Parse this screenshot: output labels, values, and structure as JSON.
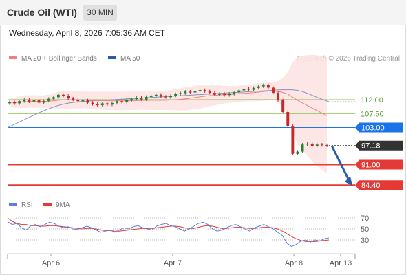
{
  "header": {
    "title": "Crude Oil (WTI)",
    "timeframe": "30 MIN"
  },
  "datetime": "Wednesday, April 8, 2026 7:05:36 AM CET",
  "legend": {
    "ma20_label": "MA 20 + Bollinger Bands",
    "ma50_label": "MA 50",
    "rsi_label": "RSI",
    "rsi_ma_label": "9MA",
    "credit": "Research © 2026 Trading Central"
  },
  "colors": {
    "candle_up": "#2e7d32",
    "candle_down": "#c62828",
    "ma20": "#f08080",
    "bollinger_fill": "#fde3e3",
    "ma50": "#8a8fbf",
    "pivot": "#1a73e8",
    "support": "#e53935",
    "resistance": "#8bc34a",
    "arrow": "#2a5ca8",
    "rsi": "#5b7fd6",
    "rsi_ma": "#e53935"
  },
  "chart_data": {
    "type": "candlestick",
    "x_ticks": [
      "Apr 6",
      "Apr 7",
      "Apr 8",
      "Apr 13"
    ],
    "y_range": [
      82.0,
      122.0
    ],
    "levels": [
      {
        "value": 112.0,
        "label": "112.00",
        "kind": "resistance"
      },
      {
        "value": 107.5,
        "label": "107.50",
        "kind": "resistance"
      },
      {
        "value": 103.0,
        "label": "103.00",
        "kind": "pivot"
      },
      {
        "value": 97.18,
        "label": "97.18",
        "kind": "last"
      },
      {
        "value": 91.0,
        "label": "91.00",
        "kind": "support"
      },
      {
        "value": 84.4,
        "label": "84.40",
        "kind": "support"
      }
    ],
    "close_series": [
      111.2,
      110.8,
      111.5,
      112.0,
      111.4,
      111.8,
      111.0,
      111.6,
      112.3,
      112.8,
      113.6,
      113.3,
      112.4,
      112.0,
      111.5,
      111.8,
      111.0,
      110.6,
      110.2,
      110.8,
      110.4,
      110.9,
      111.5,
      111.2,
      111.9,
      112.2,
      112.6,
      112.1,
      112.9,
      113.2,
      113.6,
      113.0,
      112.8,
      113.3,
      113.8,
      114.1,
      114.6,
      114.3,
      114.8,
      115.1,
      114.7,
      114.2,
      113.6,
      113.9,
      113.5,
      113.9,
      114.4,
      115.0,
      115.5,
      115.2,
      115.8,
      116.3,
      116.7,
      115.9,
      114.2,
      111.8,
      108.0,
      103.5,
      94.5,
      95.2,
      97.5,
      97.8,
      97.1,
      97.5,
      97.3,
      97.18
    ],
    "ma50_series": [
      103.0,
      103.8,
      104.6,
      105.4,
      106.2,
      107.0,
      107.8,
      108.5,
      109.2,
      109.8,
      110.3,
      110.7,
      111.0,
      111.2,
      111.4,
      111.5,
      111.6,
      111.7,
      111.8,
      111.9,
      112.0,
      112.1,
      112.2,
      112.3,
      112.4,
      112.5,
      112.6,
      112.7,
      112.8,
      112.9,
      113.0,
      113.1,
      113.2,
      113.3,
      113.4,
      113.5,
      113.6,
      113.7,
      113.8,
      113.9,
      114.0,
      114.1,
      114.2,
      114.3,
      114.4,
      114.5,
      114.6,
      114.7,
      114.8,
      114.9,
      115.0,
      115.1,
      115.2,
      115.2,
      115.2,
      115.0,
      114.6,
      114.0,
      113.3,
      112.6,
      111.9,
      111.3
    ],
    "rsi_series": [
      63,
      58,
      60,
      52,
      48,
      56,
      58,
      54,
      58,
      62,
      60,
      55,
      52,
      54,
      50,
      49,
      52,
      55,
      52,
      48,
      44,
      46,
      48,
      44,
      48,
      52,
      50,
      54,
      56,
      52,
      50,
      48,
      55,
      58,
      60,
      56,
      54,
      50,
      46,
      50,
      55,
      60,
      62,
      58,
      50,
      46,
      48,
      52,
      56,
      58,
      54,
      50,
      46,
      52,
      55,
      58,
      54,
      50,
      44,
      38,
      24,
      18,
      22,
      28,
      30,
      26,
      30,
      28,
      32,
      34
    ],
    "rsi_ma_series": [
      70,
      64,
      60,
      58,
      58,
      56,
      56,
      55,
      55,
      56,
      56,
      55,
      54,
      53,
      52,
      51,
      50,
      51,
      51,
      50,
      48,
      47,
      47,
      46,
      46,
      47,
      48,
      49,
      50,
      51,
      51,
      51,
      52,
      53,
      54,
      55,
      55,
      54,
      52,
      51,
      51,
      53,
      55,
      56,
      55,
      53,
      51,
      51,
      52,
      53,
      53,
      52,
      51,
      51,
      52,
      53,
      53,
      52,
      50,
      46,
      41,
      36,
      32,
      29,
      27,
      27,
      27,
      28,
      29,
      30
    ],
    "rsi_levels": [
      70,
      50,
      30
    ],
    "rsi_range": [
      10,
      85
    ],
    "projection": {
      "from": 97.18,
      "to": 84.4
    }
  }
}
